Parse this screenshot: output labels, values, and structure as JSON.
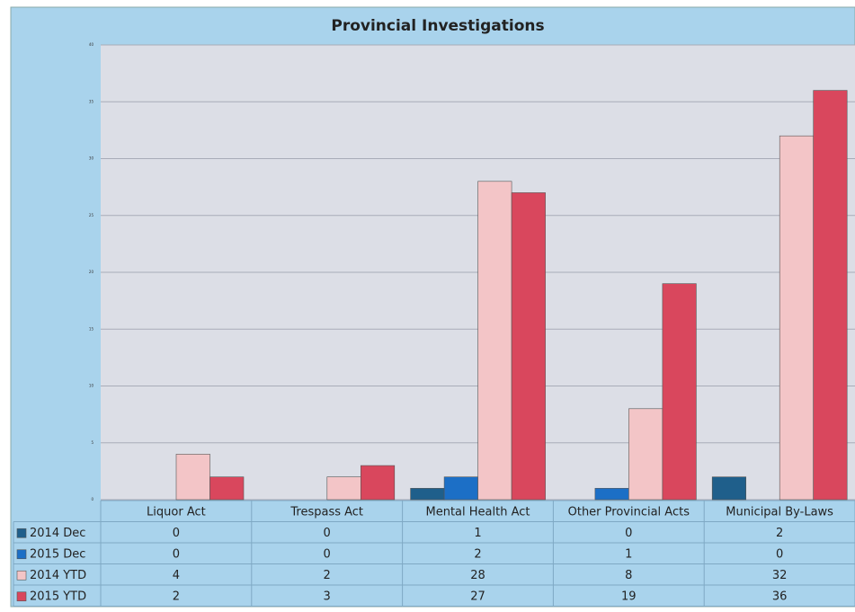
{
  "chart_data": {
    "type": "bar",
    "title": "Provincial Investigations",
    "categories": [
      "Liquor Act",
      "Trespass Act",
      "Mental Health Act",
      "Other Provincial Acts",
      "Municipal By-Laws"
    ],
    "series": [
      {
        "name": "2014 Dec",
        "color": "#1f5f8b",
        "values": [
          0,
          0,
          1,
          0,
          2
        ]
      },
      {
        "name": "2015 Dec",
        "color": "#1c6fc6",
        "values": [
          0,
          0,
          2,
          1,
          0
        ]
      },
      {
        "name": "2014 YTD",
        "color": "#f3c5c7",
        "values": [
          4,
          2,
          28,
          8,
          32
        ]
      },
      {
        "name": "2015 YTD",
        "color": "#d9475d",
        "values": [
          2,
          3,
          27,
          19,
          36
        ]
      }
    ],
    "ylim": [
      0,
      40
    ],
    "yticks": [
      0,
      5,
      10,
      15,
      20,
      25,
      30,
      35,
      40
    ],
    "grid": true
  }
}
